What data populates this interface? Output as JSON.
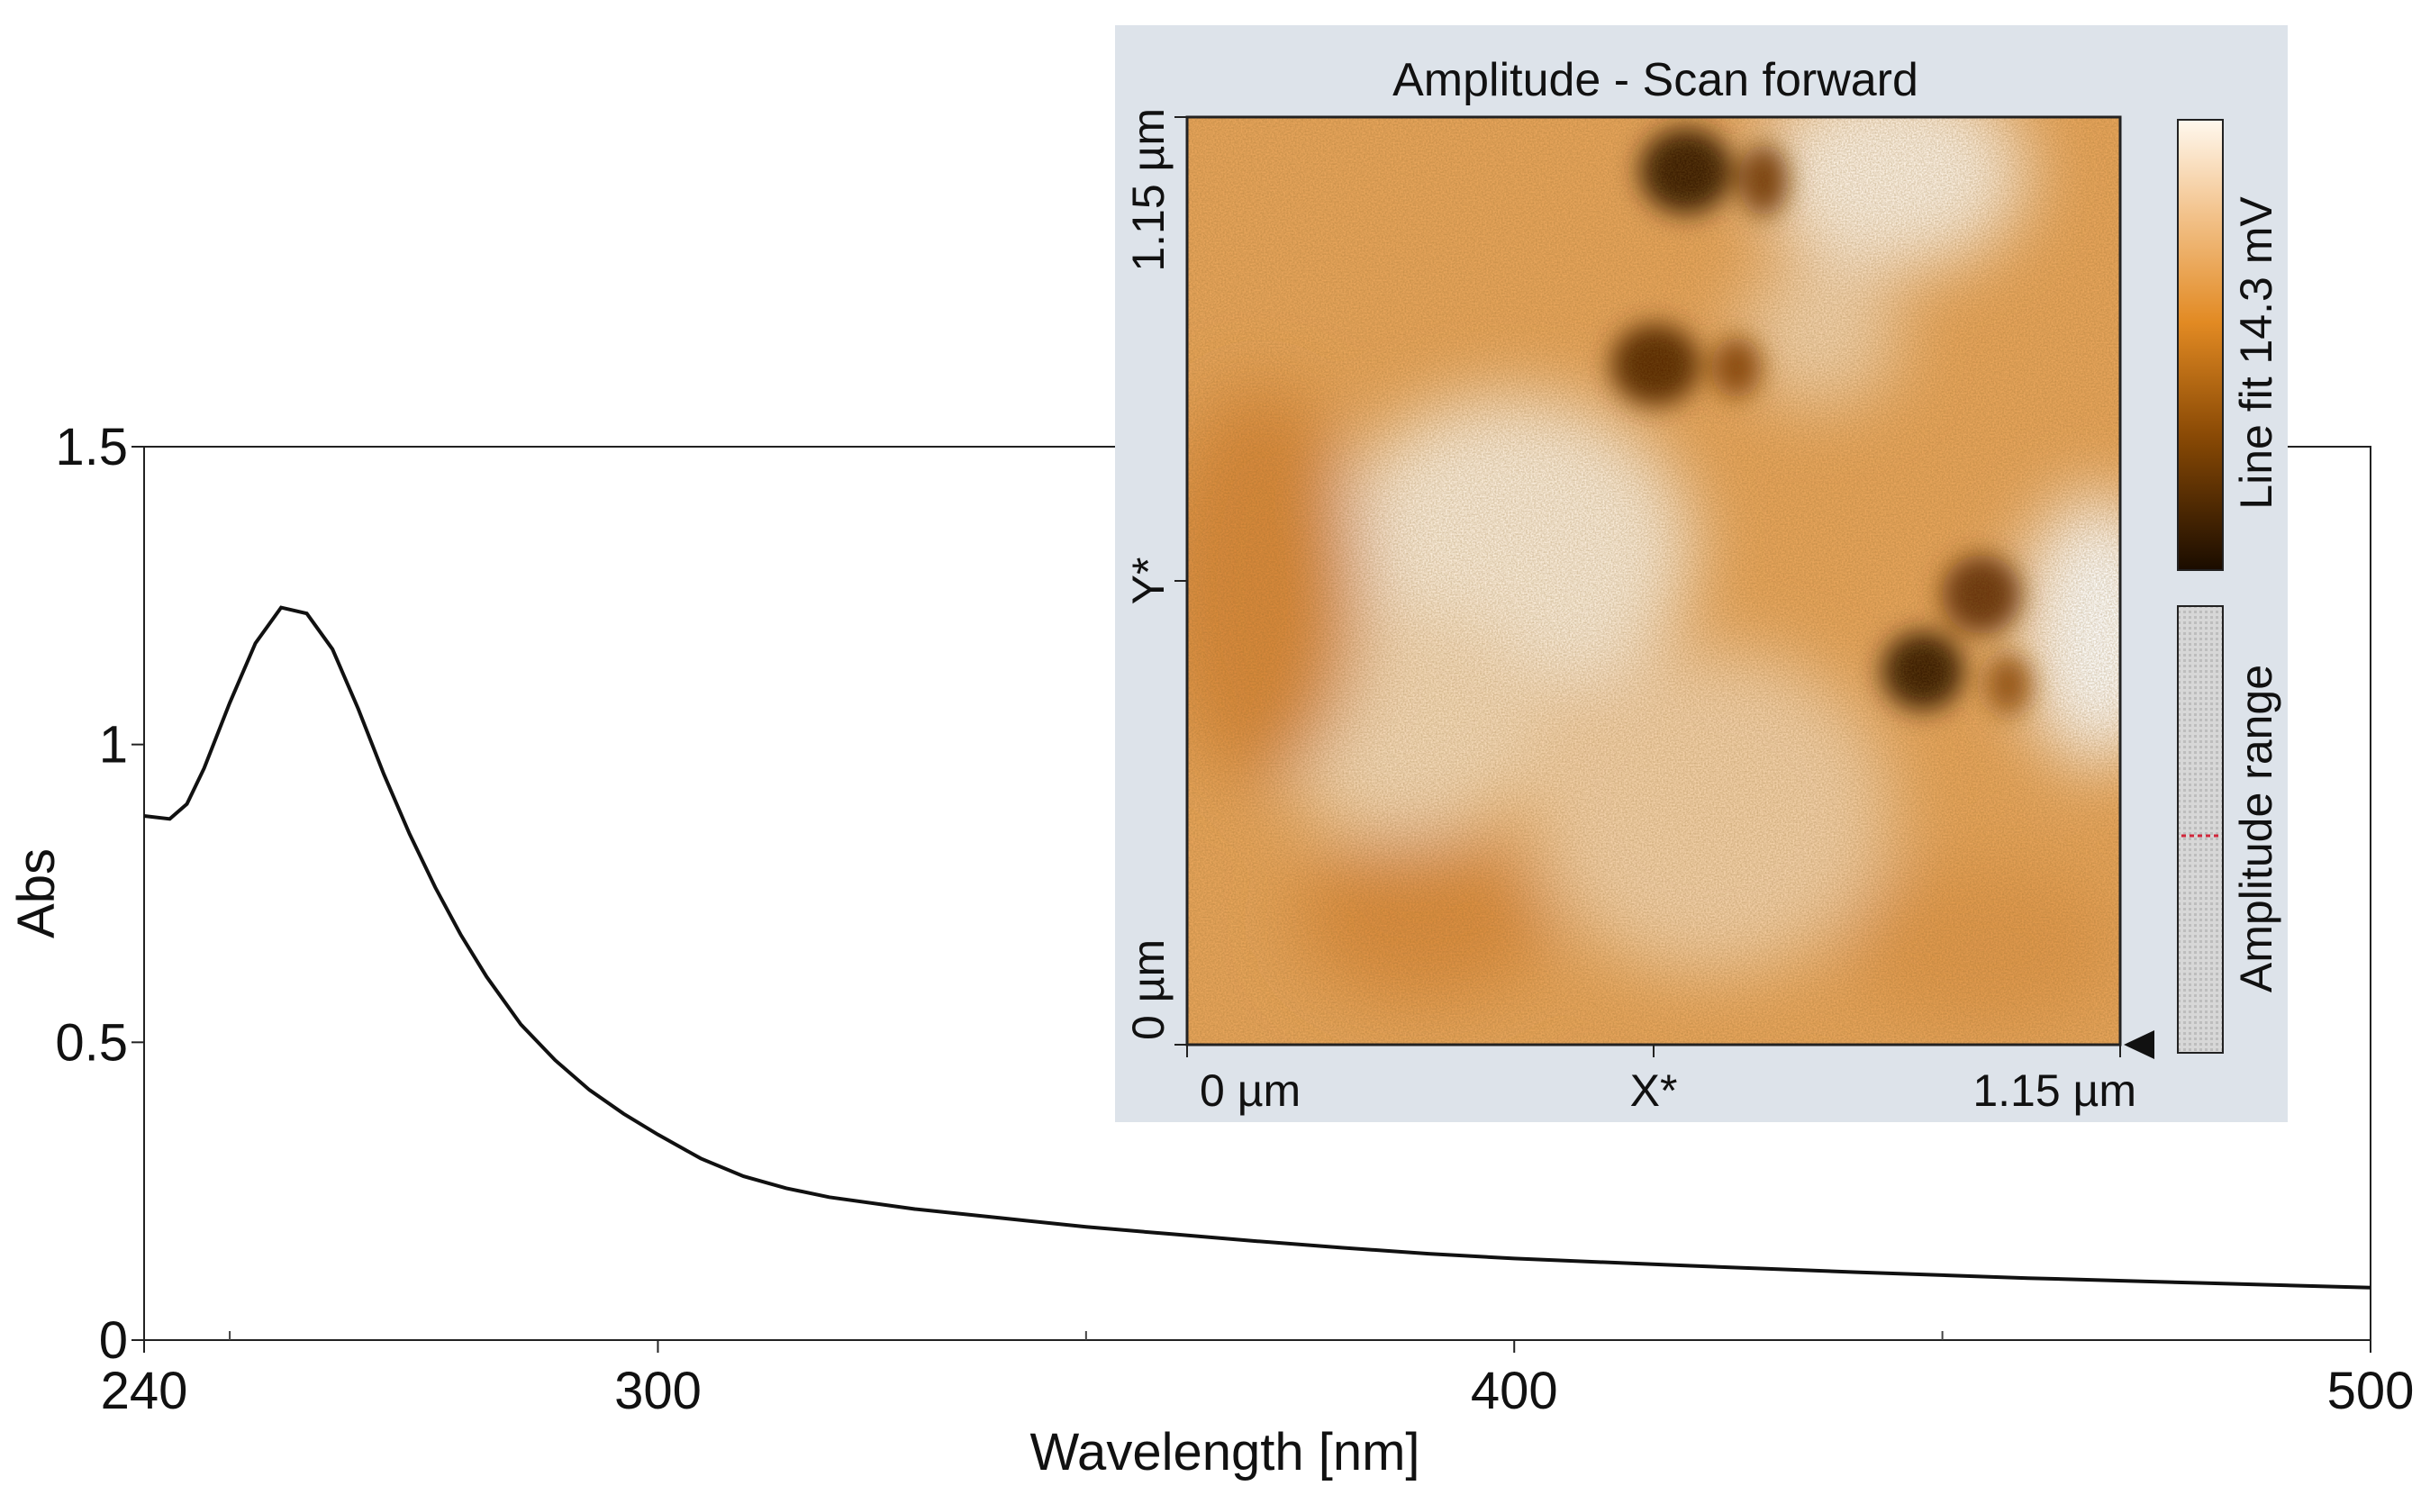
{
  "chart_data": [
    {
      "type": "line",
      "xlabel": "Wavelength [nm]",
      "ylabel": "Abs",
      "xlim": [
        240,
        500
      ],
      "ylim": [
        0,
        1.5
      ],
      "x_ticks": [
        "240",
        "300",
        "400",
        "500"
      ],
      "y_ticks": [
        "0",
        "0.5",
        "1",
        "1.5"
      ],
      "grid": false,
      "series": [
        {
          "x": [
            240,
            243,
            245,
            247,
            250,
            253,
            256,
            259,
            262,
            265,
            268,
            271,
            274,
            277,
            280,
            284,
            288,
            292,
            296,
            300,
            305,
            310,
            315,
            320,
            330,
            340,
            350,
            360,
            370,
            380,
            390,
            400,
            420,
            440,
            460,
            480,
            500
          ],
          "y": [
            0.88,
            0.875,
            0.9,
            0.96,
            1.07,
            1.17,
            1.23,
            1.22,
            1.16,
            1.06,
            0.95,
            0.85,
            0.76,
            0.68,
            0.61,
            0.53,
            0.47,
            0.42,
            0.38,
            0.345,
            0.305,
            0.275,
            0.255,
            0.24,
            0.22,
            0.205,
            0.19,
            0.178,
            0.166,
            0.155,
            0.145,
            0.137,
            0.125,
            0.114,
            0.104,
            0.096,
            0.088
          ]
        }
      ]
    },
    {
      "type": "heatmap",
      "title": "Amplitude - Scan forward",
      "xlabel": "X*",
      "ylabel": "Y*",
      "x_ticks": [
        "0 µm",
        "1.15 µm"
      ],
      "y_ticks": [
        "0 µm",
        "1.15 µm"
      ],
      "colorbar_label": "Line fit 14.3 mV",
      "range_label": "Amplitude range",
      "colormap": [
        "#1a0c00",
        "#8a4a05",
        "#e28a23",
        "#f3c590",
        "#fff8ee"
      ]
    }
  ]
}
